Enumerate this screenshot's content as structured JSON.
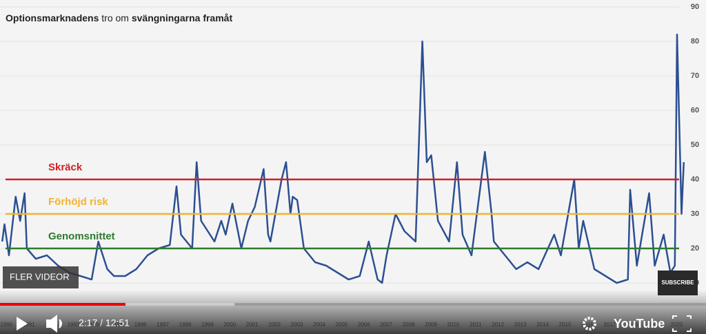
{
  "chart_data": {
    "type": "line",
    "title_parts": [
      "Optionsmarknadens",
      "tro om",
      "svängningarna framåt"
    ],
    "color": "#2b4f92",
    "x": [
      1990.0,
      1990.1,
      1990.3,
      1990.6,
      1990.8,
      1991.0,
      1991.1,
      1991.5,
      1992.0,
      1992.5,
      1993.0,
      1993.5,
      1994.0,
      1994.3,
      1994.7,
      1995.0,
      1995.5,
      1996.0,
      1996.5,
      1997.0,
      1997.5,
      1997.8,
      1998.0,
      1998.5,
      1998.7,
      1998.9,
      1999.0,
      1999.5,
      1999.8,
      2000.0,
      2000.3,
      2000.7,
      2001.0,
      2001.3,
      2001.7,
      2001.9,
      2002.0,
      2002.5,
      2002.7,
      2002.9,
      2003.0,
      2003.2,
      2003.5,
      2004.0,
      2004.5,
      2005.0,
      2005.5,
      2006.0,
      2006.4,
      2006.8,
      2007.0,
      2007.2,
      2007.6,
      2008.0,
      2008.5,
      2008.8,
      2009.0,
      2009.2,
      2009.5,
      2010.0,
      2010.35,
      2010.6,
      2011.0,
      2011.6,
      2011.9,
      2012.0,
      2012.5,
      2013.0,
      2013.5,
      2014.0,
      2014.7,
      2015.0,
      2015.6,
      2015.8,
      2016.0,
      2016.5,
      2017.0,
      2017.5,
      2018.0,
      2018.1,
      2018.4,
      2018.95,
      2019.2,
      2019.6,
      2019.9,
      2020.1,
      2020.2,
      2020.4,
      2020.5
    ],
    "values": [
      22,
      27,
      18,
      35,
      28,
      36,
      20,
      17,
      18,
      15,
      13,
      12,
      11,
      22,
      14,
      12,
      12,
      14,
      18,
      20,
      21,
      38,
      24,
      20,
      45,
      28,
      27,
      22,
      28,
      24,
      33,
      20,
      28,
      32,
      43,
      24,
      22,
      40,
      45,
      30,
      35,
      34,
      20,
      16,
      15,
      13,
      11,
      12,
      22,
      11,
      10,
      18,
      30,
      25,
      22,
      80,
      45,
      47,
      28,
      22,
      45,
      24,
      18,
      48,
      30,
      22,
      18,
      14,
      16,
      14,
      24,
      18,
      40,
      20,
      28,
      14,
      12,
      10,
      11,
      37,
      15,
      36,
      15,
      24,
      13,
      15,
      82,
      30,
      45
    ],
    "xlim": [
      1989.9,
      2020.6
    ],
    "ylim": [
      0,
      90
    ],
    "xticks": [
      1990,
      1991,
      1992,
      1993,
      1994,
      1995,
      1996,
      1997,
      1998,
      1999,
      2000,
      2001,
      2002,
      2003,
      2004,
      2005,
      2006,
      2007,
      2008,
      2009,
      2010,
      2011,
      2012,
      2013,
      2014,
      2015,
      2016,
      2017,
      2018,
      2019,
      2020
    ],
    "yticks": [
      10,
      20,
      30,
      40,
      50,
      60,
      70,
      80,
      90
    ],
    "grid": true,
    "annotations": [
      {
        "label": "Skräck",
        "value": 40,
        "color": "#d01f25"
      },
      {
        "label": "Förhöjd risk",
        "value": 30,
        "color": "#f2b330"
      },
      {
        "label": "Genomsnittet",
        "value": 20,
        "color": "#2e7a2e"
      }
    ]
  },
  "player": {
    "more_videos": "FLER VIDEOR",
    "subscribe": "SUBSCRIBE",
    "time": "2:17 / 12:51",
    "logo": "YouTube"
  }
}
